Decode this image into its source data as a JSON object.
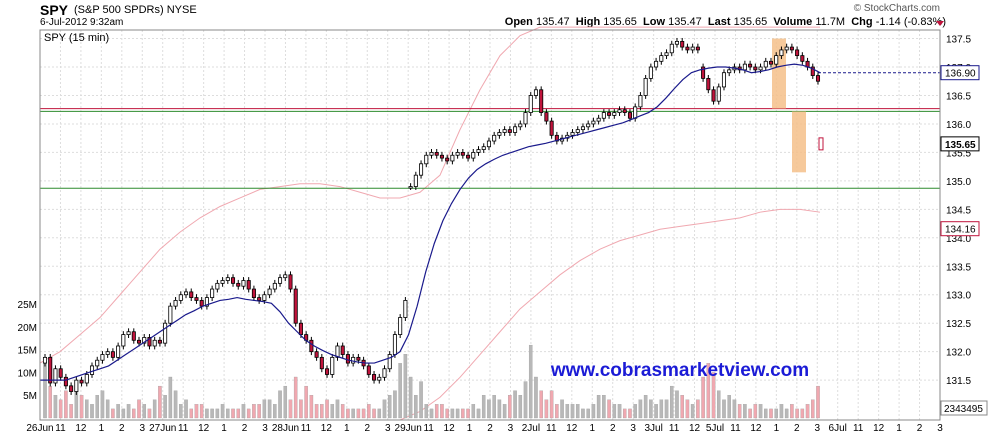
{
  "header": {
    "symbol": "SPY",
    "name": "(S&P 500 SPDRs)",
    "exchange": "NYSE",
    "timestamp": "6-Jul-2012 9:32am",
    "brand": "© StockCharts.com",
    "open_label": "Open",
    "open": "135.47",
    "high_label": "High",
    "high": "135.65",
    "low_label": "Low",
    "low": "135.47",
    "last_label": "Last",
    "last": "135.65",
    "volume_label": "Volume",
    "volume": "11.7M",
    "chg_label": "Chg",
    "chg": "-1.14 (-0.83%)"
  },
  "chart_data": {
    "type": "candlestick",
    "title": "SPY (15 min)",
    "watermark": "www.cobrasmarketview.com",
    "price_ylim": [
      130.8,
      137.65
    ],
    "price_ticks": [
      "137.5",
      "137.0",
      "136.5",
      "136.0",
      "135.5",
      "135.0",
      "134.5",
      "134.0",
      "133.5",
      "133.0",
      "132.5",
      "132.0",
      "131.5"
    ],
    "volume_ylim": [
      0,
      27
    ],
    "volume_ticks": [
      "25M",
      "20M",
      "15M",
      "10M",
      "5M"
    ],
    "x_labels": [
      "26Jun",
      "11",
      "12",
      "1",
      "2",
      "3",
      "27Jun",
      "11",
      "12",
      "1",
      "2",
      "3",
      "28Jun",
      "11",
      "12",
      "1",
      "2",
      "3",
      "29Jun",
      "11",
      "12",
      "1",
      "2",
      "3",
      "2Jul",
      "11",
      "12",
      "1",
      "2",
      "3",
      "3Jul",
      "11",
      "12",
      "5Jul",
      "11",
      "12",
      "1",
      "2",
      "3",
      "6Jul",
      "11",
      "12",
      "1",
      "2",
      "3"
    ],
    "price_tags": [
      {
        "label": "136.90",
        "value": 136.9,
        "color": "#1a1a8c"
      },
      {
        "label": "135.65",
        "value": 135.65,
        "color": "#000000"
      },
      {
        "label": "134.16",
        "value": 134.16,
        "color": "#c0143c"
      }
    ],
    "volume_tag": "2343495",
    "horizontal_lines": [
      {
        "value": 136.27,
        "color": "#c0143c"
      },
      {
        "value": 136.22,
        "color": "#2e8b2e"
      },
      {
        "value": 134.87,
        "color": "#2e8b2e"
      }
    ],
    "closes": [
      131.9,
      131.45,
      131.7,
      131.55,
      131.4,
      131.3,
      131.5,
      131.45,
      131.6,
      131.75,
      131.85,
      131.95,
      132.0,
      131.9,
      132.1,
      132.3,
      132.35,
      132.2,
      132.15,
      132.25,
      132.1,
      132.2,
      132.15,
      132.5,
      132.8,
      132.9,
      133.0,
      133.05,
      132.95,
      132.9,
      132.8,
      132.95,
      133.1,
      133.2,
      133.25,
      133.3,
      133.2,
      133.15,
      133.25,
      133.1,
      132.95,
      132.9,
      133.0,
      133.1,
      133.2,
      133.3,
      133.35,
      133.1,
      132.5,
      132.3,
      132.2,
      132.0,
      131.9,
      131.7,
      131.6,
      131.9,
      132.1,
      131.95,
      131.8,
      131.9,
      131.85,
      131.75,
      131.6,
      131.5,
      131.55,
      131.7,
      131.95,
      132.3,
      132.6,
      132.9,
      134.9,
      135.1,
      135.3,
      135.45,
      135.5,
      135.45,
      135.4,
      135.35,
      135.45,
      135.5,
      135.45,
      135.4,
      135.5,
      135.55,
      135.6,
      135.7,
      135.8,
      135.85,
      135.9,
      135.85,
      135.95,
      136.0,
      136.2,
      136.5,
      136.6,
      136.2,
      136.05,
      135.8,
      135.7,
      135.75,
      135.8,
      135.85,
      135.9,
      135.95,
      136.0,
      136.05,
      136.1,
      136.2,
      136.15,
      136.2,
      136.25,
      136.2,
      136.1,
      136.3,
      136.5,
      136.8,
      137.0,
      137.1,
      137.2,
      137.25,
      137.4,
      137.45,
      137.35,
      137.3,
      137.35,
      137.3,
      136.8,
      136.6,
      136.4,
      136.65,
      136.9,
      136.95,
      137.0,
      136.95,
      137.05,
      137.0,
      136.95,
      137.0,
      137.1,
      137.05,
      137.2,
      137.3,
      137.35,
      137.3,
      137.2,
      137.1,
      137.0,
      136.85,
      136.75
    ],
    "opens": [
      131.8,
      131.9,
      131.45,
      131.7,
      131.55,
      131.4,
      131.3,
      131.5,
      131.45,
      131.6,
      131.75,
      131.85,
      131.95,
      132.0,
      131.9,
      132.1,
      132.3,
      132.35,
      132.2,
      132.15,
      132.25,
      132.1,
      132.2,
      132.15,
      132.5,
      132.8,
      132.9,
      133.0,
      133.05,
      132.95,
      132.9,
      132.8,
      132.95,
      133.1,
      133.2,
      133.25,
      133.3,
      133.2,
      133.15,
      133.25,
      133.1,
      132.95,
      132.9,
      133.0,
      133.1,
      133.2,
      133.3,
      133.35,
      133.1,
      132.5,
      132.3,
      132.2,
      132.0,
      131.9,
      131.7,
      131.6,
      131.9,
      132.1,
      131.95,
      131.8,
      131.9,
      131.85,
      131.75,
      131.6,
      131.5,
      131.55,
      131.7,
      131.95,
      132.3,
      132.6,
      134.9,
      134.9,
      135.1,
      135.3,
      135.45,
      135.5,
      135.45,
      135.4,
      135.35,
      135.45,
      135.5,
      135.45,
      135.4,
      135.5,
      135.55,
      135.6,
      135.7,
      135.8,
      135.85,
      135.9,
      135.85,
      135.95,
      136.0,
      136.2,
      136.5,
      136.6,
      136.2,
      136.05,
      135.8,
      135.7,
      135.75,
      135.8,
      135.85,
      135.9,
      135.95,
      136.0,
      136.05,
      136.1,
      136.2,
      136.15,
      136.2,
      136.25,
      136.2,
      136.1,
      136.3,
      136.5,
      136.8,
      137.0,
      137.1,
      137.2,
      137.25,
      137.4,
      137.45,
      137.35,
      137.3,
      137.35,
      137.0,
      136.8,
      136.6,
      136.4,
      136.65,
      136.9,
      136.95,
      137.0,
      136.95,
      137.05,
      137.0,
      136.95,
      137.0,
      137.1,
      137.05,
      137.2,
      137.3,
      137.35,
      137.3,
      137.2,
      137.1,
      137.0,
      136.85
    ],
    "volumes": [
      13,
      7,
      5,
      4,
      6,
      3,
      6,
      5,
      4,
      3,
      5,
      6,
      4,
      2,
      3,
      2,
      3,
      2,
      4,
      3,
      2,
      4,
      7,
      5,
      9,
      6,
      3,
      4,
      2,
      3,
      3,
      2,
      2,
      2,
      3,
      2,
      2,
      2,
      3,
      2,
      3,
      3,
      4,
      4,
      3,
      6,
      7,
      4,
      9,
      4,
      7,
      5,
      3,
      3,
      4,
      3,
      4,
      3,
      2,
      2,
      2,
      2,
      3,
      2,
      2,
      4,
      5,
      6,
      12,
      14,
      9,
      5,
      8,
      3,
      2,
      3,
      3,
      2,
      2,
      2,
      2,
      2,
      3,
      2,
      5,
      4,
      5,
      4,
      3,
      5,
      6,
      5,
      8,
      16,
      9,
      6,
      4,
      6,
      3,
      4,
      3,
      3,
      3,
      2,
      2,
      3,
      5,
      5,
      4,
      3,
      3,
      2,
      2,
      3,
      4,
      5,
      4,
      3,
      4,
      4,
      7,
      6,
      5,
      4,
      3,
      4,
      9,
      12,
      10,
      6,
      4,
      5,
      4,
      3,
      3,
      2,
      3,
      3,
      2,
      2,
      2,
      3,
      2,
      3,
      2,
      2,
      3,
      4,
      7,
      4
    ],
    "ma_fast": [
      131.5,
      131.5,
      131.5,
      131.5,
      131.55,
      131.6,
      131.65,
      131.7,
      131.75,
      131.85,
      131.95,
      132.05,
      132.15,
      132.25,
      132.35,
      132.45,
      132.55,
      132.65,
      132.72,
      132.8,
      132.85,
      132.9,
      132.92,
      132.95,
      132.92,
      132.9,
      132.88,
      132.85,
      132.7,
      132.5,
      132.35,
      132.2,
      132.1,
      132.02,
      131.95,
      131.9,
      131.85,
      131.82,
      131.8,
      131.8,
      131.85,
      131.9,
      132.0,
      132.3,
      132.8,
      133.4,
      133.9,
      134.3,
      134.6,
      134.85,
      135.05,
      135.2,
      135.3,
      135.38,
      135.45,
      135.5,
      135.55,
      135.6,
      135.63,
      135.66,
      135.7,
      135.74,
      135.78,
      135.82,
      135.86,
      135.9,
      135.94,
      135.98,
      136.02,
      136.08,
      136.14,
      136.2,
      136.3,
      136.45,
      136.62,
      136.78,
      136.9,
      136.95,
      136.98,
      137.0,
      137.0,
      136.98,
      136.95,
      136.9,
      136.92,
      136.95,
      137.0,
      137.03,
      137.05,
      137.03,
      136.98,
      136.9
    ],
    "bands": {
      "upper": [
        131.8,
        132.0,
        132.3,
        132.6,
        133.0,
        133.4,
        133.8,
        134.1,
        134.35,
        134.55,
        134.7,
        134.85,
        134.9,
        134.95,
        134.95,
        134.9,
        134.8,
        134.7,
        134.7,
        134.8,
        135.1,
        135.9,
        136.6,
        137.2,
        137.55,
        137.7,
        137.7,
        137.7,
        137.7,
        137.7,
        137.7,
        137.7,
        137.7,
        137.7,
        137.7,
        137.7,
        137.7,
        137.7,
        137.7,
        137.7
      ],
      "lower": [
        130.8,
        130.8,
        130.8,
        130.8,
        130.8,
        130.8,
        130.8,
        130.8,
        130.8,
        130.8,
        130.8,
        130.8,
        130.8,
        130.8,
        130.8,
        130.8,
        130.8,
        130.8,
        130.8,
        130.95,
        131.2,
        131.55,
        131.95,
        132.35,
        132.75,
        133.05,
        133.35,
        133.6,
        133.8,
        133.95,
        134.05,
        134.15,
        134.2,
        134.25,
        134.3,
        134.35,
        134.45,
        134.5,
        134.5,
        134.45
      ]
    },
    "shaded_boxes": [
      {
        "from": 137.5,
        "to": 136.27,
        "color": "#f5c08a"
      },
      {
        "from": 136.22,
        "to": 135.15,
        "color": "#f5c08a"
      }
    ]
  }
}
